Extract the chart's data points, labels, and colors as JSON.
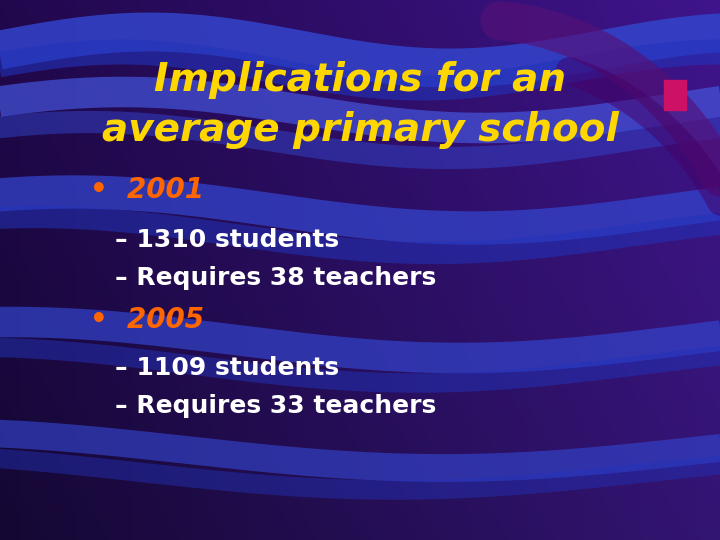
{
  "title_line1": "Implications for an",
  "title_line2": "average primary school",
  "title_color": "#FFD700",
  "title_fontsize": 28,
  "bullet_year_color": "#FF6600",
  "bullet_text_color": "#FFFFFF",
  "bullet_year_fontsize": 20,
  "bullet_text_fontsize": 18,
  "background_color": "#1a0a3a",
  "bg_gradient_left": "#200840",
  "bg_gradient_right": "#3333bb",
  "bullets": [
    {
      "year": "2001",
      "sub": [
        "– 1310 students",
        "– Requires 38 teachers"
      ]
    },
    {
      "year": "2005",
      "sub": [
        "– 1109 students",
        "– Requires 33 teachers"
      ]
    }
  ],
  "figsize": [
    7.2,
    5.4
  ],
  "dpi": 100
}
